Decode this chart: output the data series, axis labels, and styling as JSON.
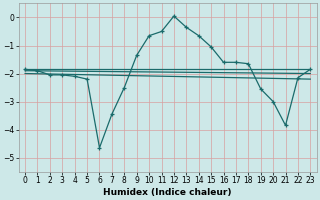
{
  "xlabel": "Humidex (Indice chaleur)",
  "background_color": "#cde8e8",
  "grid_color": "#d8a0a0",
  "line_color": "#1a6b6b",
  "xlim": [
    -0.5,
    23.5
  ],
  "ylim": [
    -5.5,
    0.5
  ],
  "xticks": [
    0,
    1,
    2,
    3,
    4,
    5,
    6,
    7,
    8,
    9,
    10,
    11,
    12,
    13,
    14,
    15,
    16,
    17,
    18,
    19,
    20,
    21,
    22,
    23
  ],
  "yticks": [
    0,
    -1,
    -2,
    -3,
    -4,
    -5
  ],
  "line1_x": [
    0,
    1,
    2,
    3,
    4,
    5,
    6,
    7,
    8,
    9,
    10,
    11,
    12,
    13,
    14,
    15,
    16,
    17,
    18,
    19,
    20,
    21,
    22,
    23
  ],
  "line1_y": [
    -1.85,
    -1.9,
    -2.05,
    -2.05,
    -2.1,
    -2.2,
    -4.65,
    -3.45,
    -2.5,
    -1.35,
    -0.65,
    -0.5,
    0.05,
    -0.35,
    -0.65,
    -1.05,
    -1.6,
    -1.6,
    -1.65,
    -2.55,
    -3.0,
    -3.85,
    -2.15,
    -1.85
  ],
  "line2_x": [
    0,
    23
  ],
  "line2_y": [
    -1.85,
    -1.85
  ],
  "line3_x": [
    0,
    23
  ],
  "line3_y": [
    -1.9,
    -2.0
  ],
  "line4_x": [
    0,
    23
  ],
  "line4_y": [
    -2.0,
    -2.2
  ]
}
